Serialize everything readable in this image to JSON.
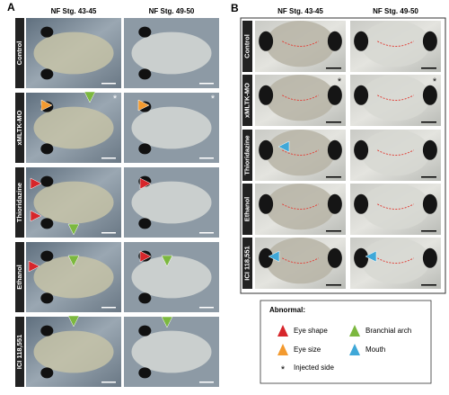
{
  "panels": {
    "A": {
      "label": "A",
      "headers": [
        "NF Stg. 43-45",
        "NF Stg. 49-50"
      ],
      "rows": [
        "Control",
        "xMLTK-MO",
        "Thioridazine",
        "Ethanol",
        "ICI 118,551"
      ],
      "asterisk": "*"
    },
    "B": {
      "label": "B",
      "headers": [
        "NF Stg. 43-45",
        "NF Stg. 49-50"
      ],
      "rows": [
        "Control",
        "xMLTK-MO",
        "Thioridazine",
        "Ethanol",
        "ICI 118,551"
      ],
      "asterisk": "*"
    }
  },
  "legend": {
    "title": "Abnormal:",
    "items": [
      "Eye shape",
      "Branchial arch",
      "Eye size",
      "Mouth",
      "Injected side"
    ],
    "asterisk": "*"
  }
}
